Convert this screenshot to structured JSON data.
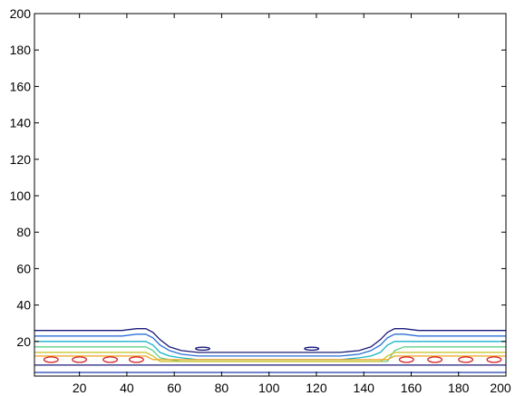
{
  "chart_data": {
    "type": "contour",
    "title": "",
    "xlabel": "",
    "ylabel": "",
    "xlim": [
      1,
      200
    ],
    "ylim": [
      1,
      200
    ],
    "x_ticks": [
      20,
      40,
      60,
      80,
      100,
      120,
      140,
      160,
      180,
      200
    ],
    "y_ticks": [
      20,
      40,
      60,
      80,
      100,
      120,
      140,
      160,
      180,
      200
    ],
    "grid": false,
    "contour_levels": [
      {
        "color": "#1a1a7a",
        "points": [
          [
            1,
            26
          ],
          [
            10,
            26
          ],
          [
            20,
            26
          ],
          [
            30,
            26
          ],
          [
            38,
            26
          ],
          [
            44,
            27
          ],
          [
            48,
            27
          ],
          [
            51,
            25
          ],
          [
            54,
            21
          ],
          [
            58,
            17
          ],
          [
            63,
            15
          ],
          [
            70,
            14
          ],
          [
            80,
            14
          ],
          [
            90,
            14
          ],
          [
            100,
            14
          ],
          [
            110,
            14
          ],
          [
            120,
            14
          ],
          [
            130,
            14
          ],
          [
            138,
            15
          ],
          [
            143,
            17
          ],
          [
            147,
            21
          ],
          [
            150,
            25
          ],
          [
            153,
            27
          ],
          [
            157,
            27
          ],
          [
            163,
            26
          ],
          [
            170,
            26
          ],
          [
            180,
            26
          ],
          [
            190,
            26
          ],
          [
            200,
            26
          ]
        ]
      },
      {
        "color": "#2a6fd6",
        "points": [
          [
            1,
            23
          ],
          [
            10,
            23
          ],
          [
            20,
            23
          ],
          [
            30,
            23
          ],
          [
            38,
            23
          ],
          [
            44,
            24
          ],
          [
            48,
            24
          ],
          [
            51,
            22
          ],
          [
            54,
            18
          ],
          [
            58,
            15
          ],
          [
            63,
            13
          ],
          [
            70,
            12
          ],
          [
            80,
            12
          ],
          [
            90,
            12
          ],
          [
            100,
            12
          ],
          [
            110,
            12
          ],
          [
            120,
            12
          ],
          [
            130,
            12
          ],
          [
            138,
            13
          ],
          [
            143,
            15
          ],
          [
            147,
            18
          ],
          [
            150,
            22
          ],
          [
            153,
            24
          ],
          [
            157,
            24
          ],
          [
            163,
            23
          ],
          [
            170,
            23
          ],
          [
            180,
            23
          ],
          [
            190,
            23
          ],
          [
            200,
            23
          ]
        ]
      },
      {
        "color": "#17b3c9",
        "points": [
          [
            1,
            20
          ],
          [
            10,
            20
          ],
          [
            20,
            20
          ],
          [
            30,
            20
          ],
          [
            38,
            20
          ],
          [
            44,
            20
          ],
          [
            48,
            20
          ],
          [
            51,
            18
          ],
          [
            54,
            14
          ],
          [
            58,
            12
          ],
          [
            63,
            11
          ],
          [
            70,
            10
          ],
          [
            80,
            10
          ],
          [
            90,
            10
          ],
          [
            100,
            10
          ],
          [
            110,
            10
          ],
          [
            120,
            10
          ],
          [
            130,
            10
          ],
          [
            138,
            11
          ],
          [
            143,
            12
          ],
          [
            147,
            14
          ],
          [
            150,
            18
          ],
          [
            153,
            20
          ],
          [
            157,
            20
          ],
          [
            163,
            20
          ],
          [
            170,
            20
          ],
          [
            180,
            20
          ],
          [
            190,
            20
          ],
          [
            200,
            20
          ]
        ]
      },
      {
        "color": "#5fd08a",
        "points": [
          [
            1,
            17
          ],
          [
            10,
            17
          ],
          [
            20,
            17
          ],
          [
            30,
            17
          ],
          [
            38,
            17
          ],
          [
            44,
            17
          ],
          [
            48,
            17
          ],
          [
            51,
            15
          ],
          [
            54,
            11
          ],
          [
            58,
            10
          ],
          [
            63,
            9
          ],
          [
            150,
            9
          ],
          [
            153,
            15
          ],
          [
            157,
            17
          ],
          [
            163,
            17
          ],
          [
            170,
            17
          ],
          [
            180,
            17
          ],
          [
            190,
            17
          ],
          [
            200,
            17
          ]
        ]
      },
      {
        "color": "#c6c11f",
        "points": [
          [
            1,
            14
          ],
          [
            10,
            14
          ],
          [
            20,
            14
          ],
          [
            30,
            14
          ],
          [
            38,
            14
          ],
          [
            44,
            14
          ],
          [
            48,
            14
          ],
          [
            51,
            12
          ],
          [
            54,
            9
          ],
          [
            147,
            9
          ],
          [
            150,
            12
          ],
          [
            153,
            14
          ],
          [
            157,
            14
          ],
          [
            163,
            14
          ],
          [
            170,
            14
          ],
          [
            180,
            14
          ],
          [
            190,
            14
          ],
          [
            200,
            14
          ]
        ]
      },
      {
        "color": "#f0a01e",
        "points": [
          [
            1,
            12
          ],
          [
            10,
            12
          ],
          [
            20,
            12
          ],
          [
            30,
            12
          ],
          [
            38,
            12
          ],
          [
            44,
            12
          ],
          [
            48,
            12
          ],
          [
            51,
            10
          ],
          [
            150,
            10
          ],
          [
            153,
            12
          ],
          [
            157,
            12
          ],
          [
            163,
            12
          ],
          [
            170,
            12
          ],
          [
            180,
            12
          ],
          [
            190,
            12
          ],
          [
            200,
            12
          ]
        ]
      },
      {
        "color": "#1a1a7a",
        "points": [
          [
            1,
            7
          ],
          [
            10,
            7
          ],
          [
            20,
            7
          ],
          [
            30,
            7
          ],
          [
            40,
            7
          ],
          [
            50,
            7
          ],
          [
            60,
            7
          ],
          [
            70,
            7
          ],
          [
            80,
            7
          ],
          [
            90,
            7
          ],
          [
            100,
            7
          ],
          [
            110,
            7
          ],
          [
            120,
            7
          ],
          [
            130,
            7
          ],
          [
            140,
            7
          ],
          [
            150,
            7
          ],
          [
            160,
            7
          ],
          [
            170,
            7
          ],
          [
            180,
            7
          ],
          [
            190,
            7
          ],
          [
            200,
            7
          ]
        ]
      },
      {
        "color": "#1e3fb0",
        "points": [
          [
            1,
            3
          ],
          [
            10,
            3
          ],
          [
            20,
            3
          ],
          [
            30,
            3
          ],
          [
            40,
            3
          ],
          [
            50,
            3
          ],
          [
            60,
            3
          ],
          [
            70,
            3
          ],
          [
            80,
            3
          ],
          [
            90,
            3
          ],
          [
            100,
            3
          ],
          [
            110,
            3
          ],
          [
            120,
            3
          ],
          [
            130,
            3
          ],
          [
            140,
            3
          ],
          [
            150,
            3
          ],
          [
            160,
            3
          ],
          [
            170,
            3
          ],
          [
            180,
            3
          ],
          [
            190,
            3
          ],
          [
            200,
            3
          ]
        ]
      }
    ],
    "contour_loops": [
      {
        "color": "#d62020",
        "cx": 8,
        "cy": 10,
        "rx": 3,
        "ry": 1.5
      },
      {
        "color": "#d62020",
        "cx": 20,
        "cy": 10,
        "rx": 3,
        "ry": 1.5
      },
      {
        "color": "#d62020",
        "cx": 33,
        "cy": 10,
        "rx": 3,
        "ry": 1.5
      },
      {
        "color": "#d62020",
        "cx": 44,
        "cy": 10,
        "rx": 3,
        "ry": 1.5
      },
      {
        "color": "#d62020",
        "cx": 158,
        "cy": 10,
        "rx": 3,
        "ry": 1.5
      },
      {
        "color": "#d62020",
        "cx": 170,
        "cy": 10,
        "rx": 3,
        "ry": 1.5
      },
      {
        "color": "#d62020",
        "cx": 183,
        "cy": 10,
        "rx": 3,
        "ry": 1.5
      },
      {
        "color": "#d62020",
        "cx": 195,
        "cy": 10,
        "rx": 3,
        "ry": 1.5
      },
      {
        "color": "#1a1a7a",
        "cx": 72,
        "cy": 16,
        "rx": 3,
        "ry": 0.8
      },
      {
        "color": "#1a1a7a",
        "cx": 118,
        "cy": 16,
        "rx": 3,
        "ry": 0.8
      }
    ]
  }
}
